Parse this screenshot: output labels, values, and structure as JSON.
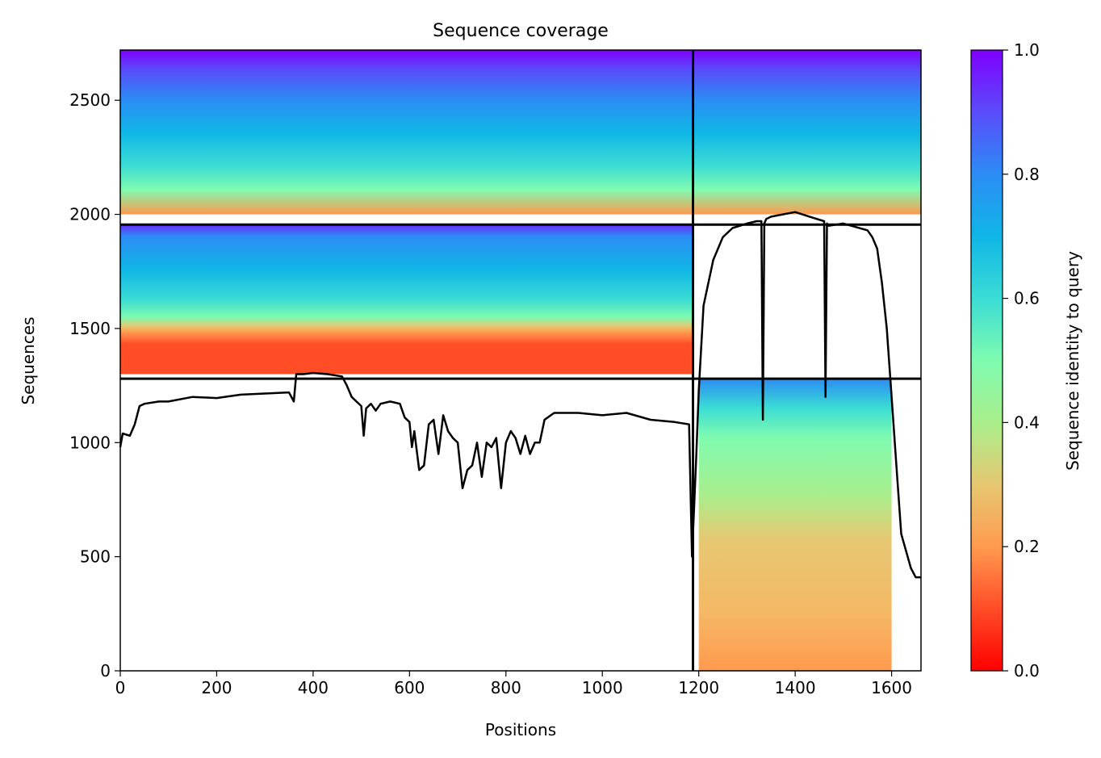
{
  "chart_data": {
    "type": "heatmap",
    "title": "Sequence coverage",
    "xlabel": "Positions",
    "ylabel": "Sequences",
    "xlim": [
      0,
      1661
    ],
    "ylim": [
      0,
      2720
    ],
    "x_ticks": [
      0,
      200,
      400,
      600,
      800,
      1000,
      1200,
      1400,
      1600
    ],
    "y_ticks": [
      0,
      500,
      1000,
      1500,
      2000,
      2500
    ],
    "colorbar": {
      "label": "Sequence identity to query",
      "colormap": "rainbow_r",
      "range": [
        0.0,
        1.0
      ],
      "ticks": [
        0.0,
        0.2,
        0.4,
        0.6,
        0.8,
        1.0
      ]
    },
    "chain_boundaries": {
      "positions": [
        1188
      ],
      "sequences": [
        1280,
        1955
      ]
    },
    "series": [
      {
        "type": "line",
        "color": "#000000",
        "x": [
          0,
          5,
          20,
          30,
          40,
          50,
          80,
          100,
          150,
          200,
          250,
          300,
          350,
          360,
          365,
          380,
          400,
          430,
          460,
          470,
          480,
          490,
          500,
          505,
          510,
          520,
          530,
          540,
          560,
          580,
          590,
          600,
          605,
          610,
          620,
          630,
          640,
          650,
          660,
          670,
          680,
          690,
          700,
          710,
          720,
          730,
          740,
          750,
          760,
          770,
          780,
          790,
          800,
          810,
          820,
          830,
          840,
          850,
          860,
          870,
          880,
          900,
          950,
          1000,
          1050,
          1100,
          1150,
          1180,
          1186,
          1190,
          1195,
          1200,
          1210,
          1220,
          1230,
          1250,
          1270,
          1300,
          1320,
          1330,
          1333,
          1336,
          1340,
          1350,
          1400,
          1430,
          1460,
          1463,
          1466,
          1470,
          1500,
          1550,
          1560,
          1570,
          1580,
          1590,
          1600,
          1610,
          1620,
          1640,
          1650,
          1661
        ],
        "values": [
          980,
          1040,
          1030,
          1080,
          1160,
          1170,
          1180,
          1180,
          1200,
          1195,
          1210,
          1215,
          1220,
          1180,
          1300,
          1300,
          1305,
          1300,
          1290,
          1250,
          1200,
          1180,
          1160,
          1030,
          1150,
          1170,
          1140,
          1170,
          1180,
          1170,
          1110,
          1090,
          980,
          1050,
          880,
          900,
          1080,
          1100,
          950,
          1120,
          1050,
          1020,
          1000,
          800,
          880,
          900,
          1000,
          850,
          1000,
          980,
          1020,
          800,
          1000,
          1050,
          1020,
          950,
          1030,
          950,
          1000,
          1000,
          1100,
          1130,
          1130,
          1120,
          1130,
          1100,
          1090,
          1080,
          500,
          700,
          950,
          1230,
          1600,
          1700,
          1800,
          1900,
          1940,
          1960,
          1970,
          1970,
          1100,
          1960,
          1980,
          1990,
          2010,
          1990,
          1970,
          1200,
          1960,
          1950,
          1960,
          1930,
          1900,
          1850,
          1700,
          1500,
          1200,
          900,
          600,
          450,
          410,
          410
        ]
      }
    ]
  }
}
